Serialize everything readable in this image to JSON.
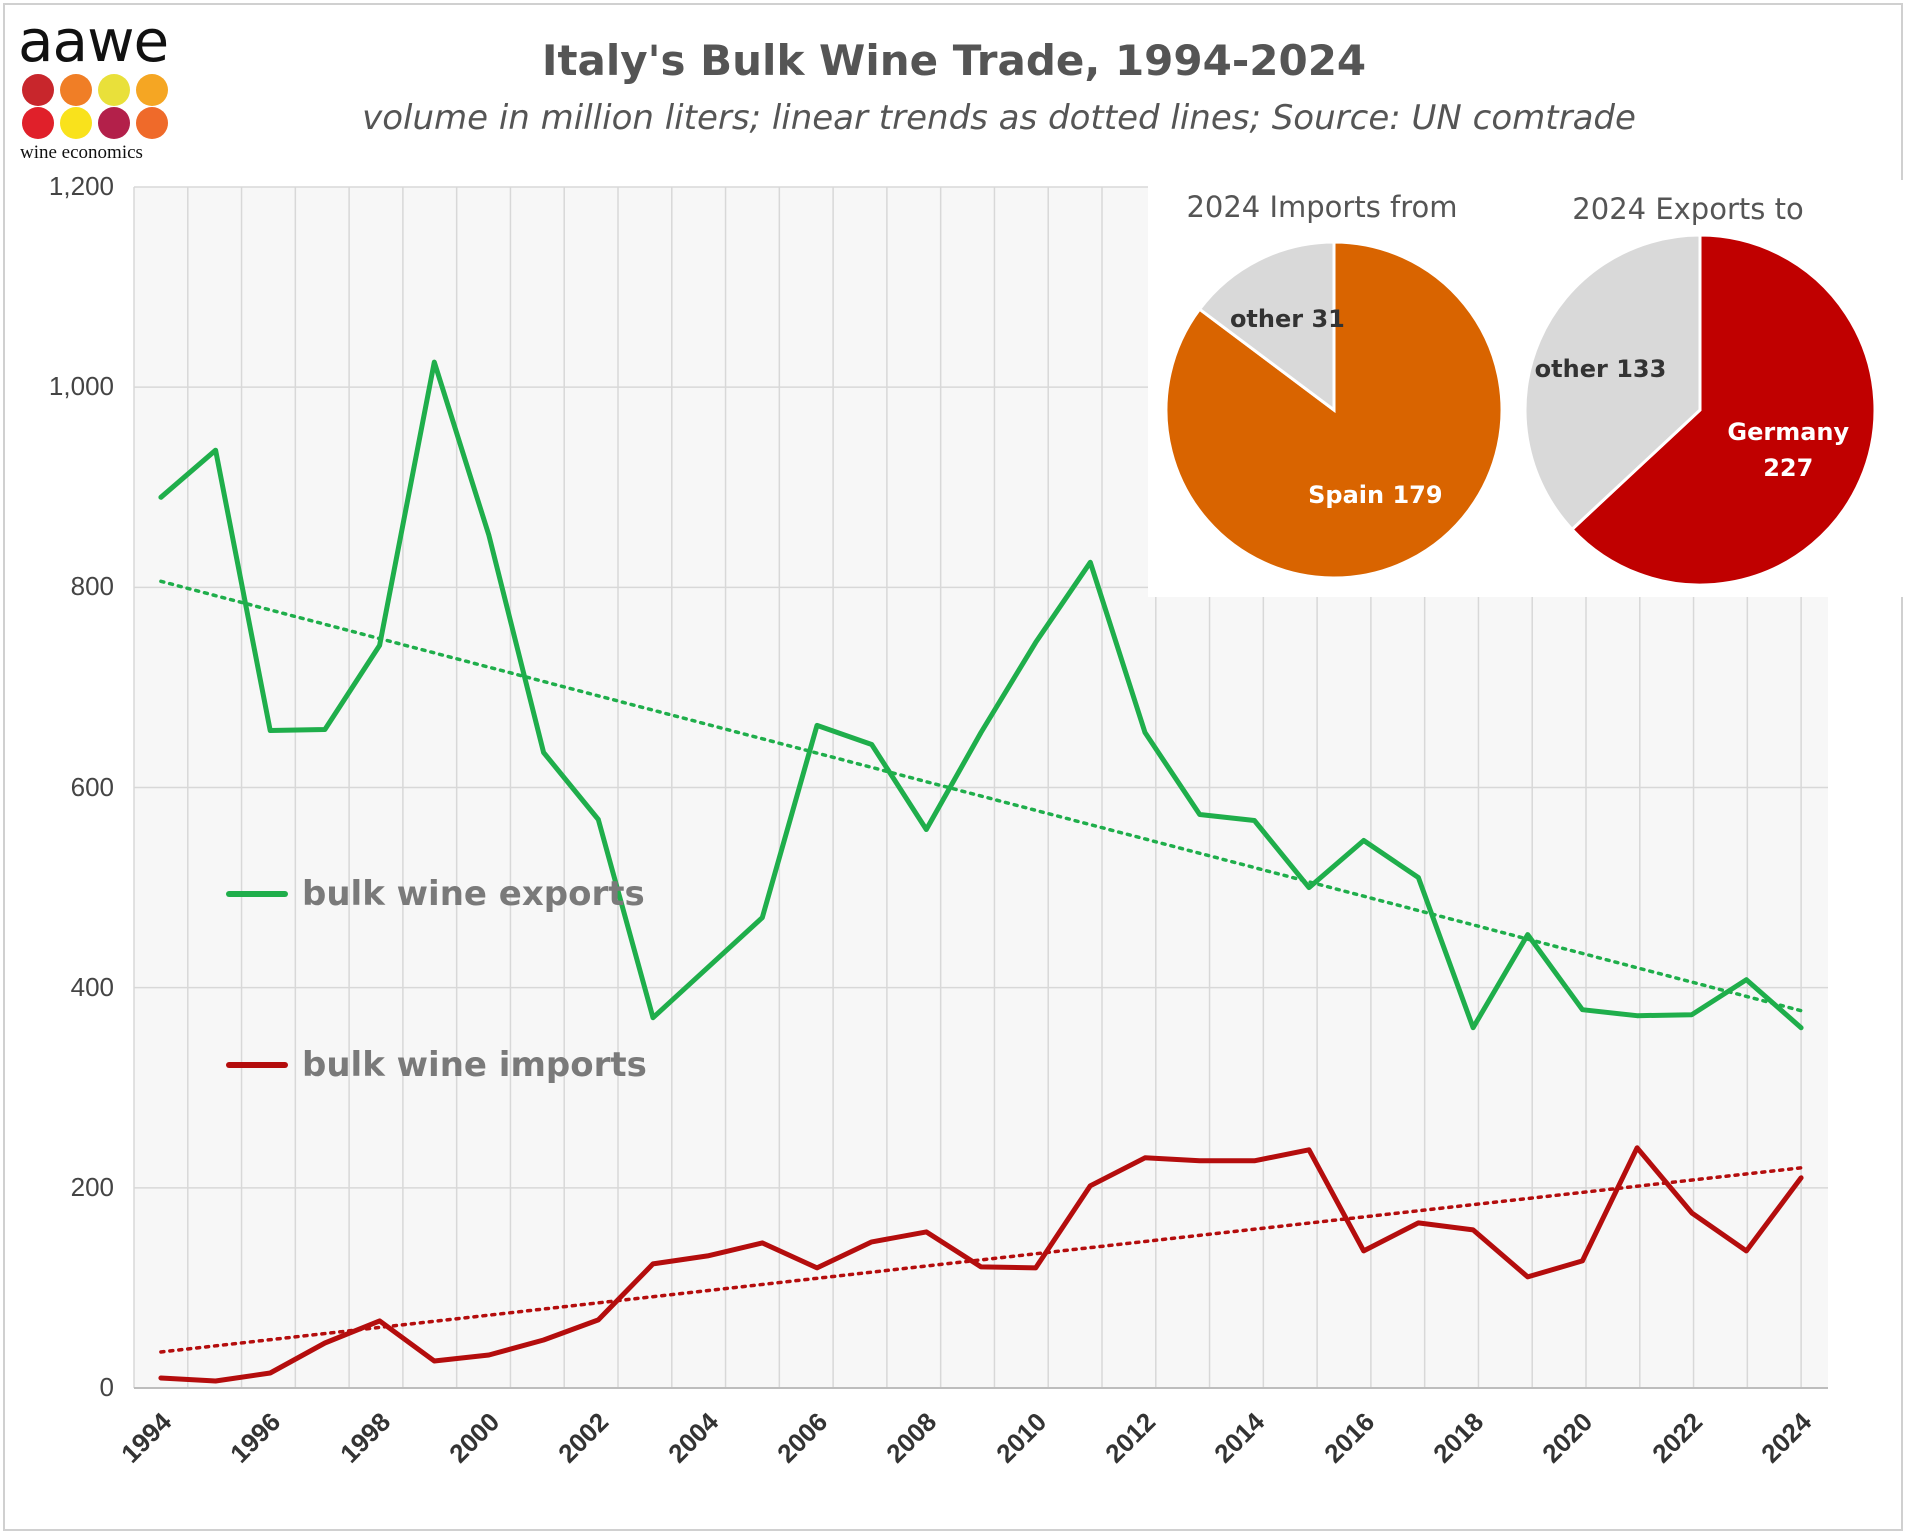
{
  "logo": {
    "wordmark": "aawe",
    "tagline": "wine economics",
    "dot_colors": [
      "#c8262c",
      "#f07e26",
      "#e9e03a",
      "#f5a623",
      "#e0202a",
      "#f9e21c",
      "#b3204a",
      "#ef6a2a"
    ]
  },
  "title": "Italy's Bulk Wine Trade, 1994-2024",
  "subtitle": "volume in million liters; linear trends as dotted lines; Source: UN comtrade",
  "colors": {
    "exports": "#1fae4b",
    "imports": "#b40d0d",
    "pie_spain": "#d96400",
    "pie_germany": "#c00000",
    "pie_other": "#d9d9d9",
    "grid": "#d8d8d8",
    "plot_bg": "#f7f7f7"
  },
  "legend": {
    "exports_label": "bulk wine exports",
    "imports_label": "bulk wine imports"
  },
  "chart_data": {
    "type": "line",
    "title": "Italy's Bulk Wine Trade, 1994-2024",
    "subtitle": "volume in million liters; linear trends as dotted lines; Source: UN comtrade",
    "x": [
      1994,
      1995,
      1996,
      1997,
      1998,
      1999,
      2000,
      2001,
      2002,
      2003,
      2004,
      2005,
      2006,
      2007,
      2008,
      2009,
      2010,
      2011,
      2012,
      2013,
      2014,
      2015,
      2016,
      2017,
      2018,
      2019,
      2020,
      2021,
      2022,
      2023,
      2024
    ],
    "xticks": [
      "1994",
      "1996",
      "1998",
      "2000",
      "2002",
      "2004",
      "2006",
      "2008",
      "2010",
      "2012",
      "2014",
      "2016",
      "2018",
      "2020",
      "2022",
      "2024"
    ],
    "yticks": [
      "0",
      "200",
      "400",
      "600",
      "800",
      "1,000",
      "1,200"
    ],
    "ylim": [
      0,
      1200
    ],
    "grid": true,
    "series": [
      {
        "name": "bulk wine exports",
        "values": [
          890,
          937,
          657,
          658,
          742,
          1025,
          852,
          635,
          568,
          370,
          420,
          470,
          662,
          643,
          558,
          655,
          745,
          825,
          655,
          573,
          567,
          500,
          547,
          510,
          360,
          453,
          378,
          372,
          373,
          408,
          360
        ],
        "trend": [
          806,
          377
        ]
      },
      {
        "name": "bulk wine imports",
        "values": [
          10,
          7,
          15,
          45,
          67,
          27,
          33,
          48,
          68,
          124,
          132,
          145,
          120,
          146,
          156,
          121,
          120,
          202,
          230,
          227,
          227,
          238,
          137,
          165,
          158,
          111,
          127,
          240,
          175,
          137,
          210
        ],
        "trend": [
          36,
          220
        ]
      }
    ],
    "insets": [
      {
        "type": "pie",
        "title": "2024 Imports from",
        "slices": [
          {
            "label": "Spain",
            "value": 179
          },
          {
            "label": "other",
            "value": 31
          }
        ]
      },
      {
        "type": "pie",
        "title": "2024 Exports to",
        "slices": [
          {
            "label": "Germany",
            "value": 227
          },
          {
            "label": "other",
            "value": 133
          }
        ]
      }
    ]
  }
}
